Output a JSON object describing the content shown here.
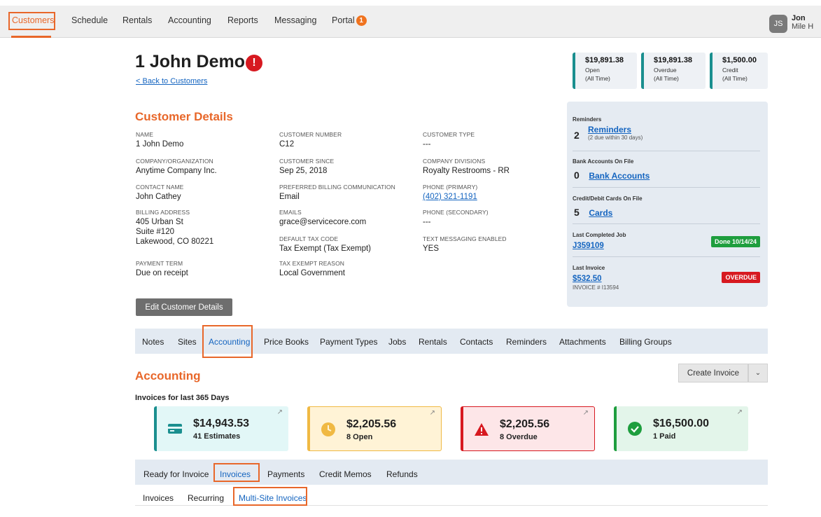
{
  "nav": {
    "items": [
      "Customers",
      "Schedule",
      "Rentals",
      "Accounting",
      "Reports",
      "Messaging",
      "Portal"
    ],
    "portal_badge": "1",
    "user_initials": "JS",
    "user_name": "Jon",
    "user_org": "Mile H"
  },
  "header": {
    "title": "1 John Demo",
    "alert": "!",
    "back_link": "< Back to Customers"
  },
  "summary": [
    {
      "value": "$19,891.38",
      "label": "Open",
      "sub": "(All Time)"
    },
    {
      "value": "$19,891.38",
      "label": "Overdue",
      "sub": "(All Time)"
    },
    {
      "value": "$1,500.00",
      "label": "Credit",
      "sub": "(All Time)"
    }
  ],
  "details": {
    "title": "Customer Details",
    "name_label": "NAME",
    "name": "1 John Demo",
    "company_label": "COMPANY/ORGANIZATION",
    "company": "Anytime Company Inc.",
    "contact_label": "CONTACT NAME",
    "contact": "John Cathey",
    "billing_label": "BILLING ADDRESS",
    "billing_1": "405 Urban St",
    "billing_2": "Suite #120",
    "billing_3": "Lakewood, CO 80221",
    "term_label": "PAYMENT TERM",
    "term": "Due on receipt",
    "number_label": "CUSTOMER NUMBER",
    "number": "C12",
    "since_label": "CUSTOMER SINCE",
    "since": "Sep 25, 2018",
    "comm_label": "PREFERRED BILLING COMMUNICATION",
    "comm": "Email",
    "emails_label": "EMAILS",
    "emails": "grace@servicecore.com",
    "tax_label": "DEFAULT TAX CODE",
    "tax": "Tax Exempt (Tax Exempt)",
    "exempt_label": "TAX EXEMPT REASON",
    "exempt": "Local Government",
    "type_label": "CUSTOMER TYPE",
    "type": "---",
    "divisions_label": "COMPANY DIVISIONS",
    "divisions": "Royalty Restrooms - RR",
    "phone1_label": "PHONE (PRIMARY)",
    "phone1": "(402) 321-1191",
    "phone2_label": "PHONE (SECONDARY)",
    "phone2": "---",
    "sms_label": "TEXT MESSAGING ENABLED",
    "sms": "YES",
    "edit_button": "Edit Customer Details"
  },
  "sidebar": {
    "reminders_head": "Reminders",
    "reminders_count": "2",
    "reminders_link": "Reminders",
    "reminders_note": "(2 due within 30 days)",
    "bank_head": "Bank Accounts On File",
    "bank_count": "0",
    "bank_link": "Bank Accounts",
    "cards_head": "Credit/Debit Cards On File",
    "cards_count": "5",
    "cards_link": "Cards",
    "job_head": "Last Completed Job",
    "job_link": "J359109",
    "job_badge": "Done 10/14/24",
    "invoice_head": "Last Invoice",
    "invoice_link": "$532.50",
    "invoice_no": "INVOICE # I13594",
    "invoice_badge": "OVERDUE"
  },
  "tabs": [
    "Notes",
    "Sites",
    "Accounting",
    "Price Books",
    "Payment Types",
    "Jobs",
    "Rentals",
    "Contacts",
    "Reminders",
    "Attachments",
    "Billing Groups"
  ],
  "accounting": {
    "title": "Accounting",
    "create_button": "Create Invoice",
    "caret": "⌄",
    "period": "Invoices for last 365 Days",
    "stats": [
      {
        "value": "$14,943.53",
        "sub": "41 Estimates",
        "icon": "card-icon"
      },
      {
        "value": "$2,205.56",
        "sub": "8 Open",
        "icon": "clock-icon"
      },
      {
        "value": "$2,205.56",
        "sub": "8 Overdue",
        "icon": "warning-icon"
      },
      {
        "value": "$16,500.00",
        "sub": "1 Paid",
        "icon": "check-icon"
      }
    ],
    "subtabs": [
      "Ready for Invoice",
      "Invoices",
      "Payments",
      "Credit Memos",
      "Refunds"
    ],
    "subtabs2": [
      "Invoices",
      "Recurring",
      "Multi-Site Invoices"
    ]
  },
  "colors": {
    "accent": "#e8672a",
    "link": "#1565c0",
    "teal": "#1a8f8f",
    "danger": "#d71920",
    "success": "#1e9e3e",
    "warning": "#f0b943"
  }
}
